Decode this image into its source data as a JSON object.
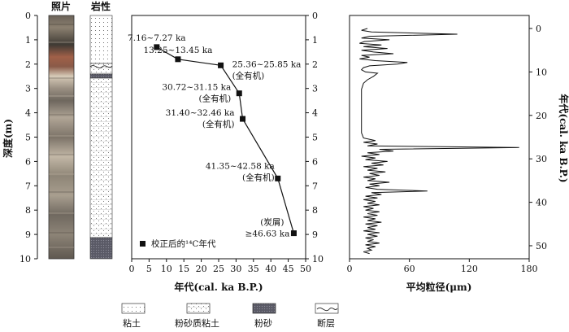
{
  "photo_column": {
    "header": "照片"
  },
  "lithology_column": {
    "header": "岩性"
  },
  "depth_axis": {
    "label": "深度(m)",
    "ticks": [
      "0",
      "1",
      "2",
      "3",
      "4",
      "5",
      "6",
      "7",
      "8",
      "9",
      "10"
    ]
  },
  "chart_data": [
    {
      "type": "scatter",
      "title": "",
      "xlabel": "年代(cal. ka B.P.)",
      "ylabel": "深度(m)",
      "xlim": [
        0,
        50
      ],
      "ylim": [
        0,
        10
      ],
      "y_inverted": true,
      "x_ticks": [
        "0",
        "5",
        "10",
        "15",
        "20",
        "25",
        "30",
        "35",
        "40",
        "45",
        "50"
      ],
      "y_ticks": [
        "0",
        "1",
        "2",
        "3",
        "4",
        "5",
        "6",
        "7",
        "8",
        "9",
        "10"
      ],
      "legend": {
        "label": "校正后的¹⁴C年代",
        "placement": "bottom-left"
      },
      "points": [
        {
          "age": 7.2,
          "depth": 1.3,
          "label": "7.16~7.27 ka",
          "note": ""
        },
        {
          "age": 13.3,
          "depth": 1.8,
          "label": "13.25~13.45 ka",
          "note": ""
        },
        {
          "age": 25.6,
          "depth": 2.05,
          "label": "25.36~25.85 ka",
          "note": "(全有机)"
        },
        {
          "age": 30.9,
          "depth": 3.2,
          "label": "30.72~31.15 ka",
          "note": "(全有机)"
        },
        {
          "age": 31.9,
          "depth": 4.25,
          "label": "31.40~32.46 ka",
          "note": "(全有机)"
        },
        {
          "age": 42.0,
          "depth": 6.7,
          "label": "41.35~42.58 ka",
          "note": "(全有机)"
        },
        {
          "age": 46.6,
          "depth": 8.95,
          "label": "≥46.63 ka",
          "note": "(炭屑)"
        }
      ]
    },
    {
      "type": "line",
      "title": "",
      "xlabel": "平均粒径(μm)",
      "ylabel": "年代(cal. ka B.P.)",
      "xlim": [
        0,
        180
      ],
      "ylim": [
        -3,
        53
      ],
      "y_inverted": true,
      "x_ticks": [
        "0",
        "60",
        "120",
        "180"
      ],
      "y_ticks": [
        "0",
        "10",
        "20",
        "30",
        "40",
        "50"
      ],
      "series": [
        {
          "name": "",
          "points": [
            [
              18,
              0
            ],
            [
              12,
              0.4
            ],
            [
              22,
              0.8
            ],
            [
              108,
              1.3
            ],
            [
              20,
              1.8
            ],
            [
              12,
              2.2
            ],
            [
              40,
              2.6
            ],
            [
              15,
              3.0
            ],
            [
              10,
              3.4
            ],
            [
              32,
              3.8
            ],
            [
              14,
              4.2
            ],
            [
              38,
              4.6
            ],
            [
              12,
              5.0
            ],
            [
              24,
              5.4
            ],
            [
              44,
              5.8
            ],
            [
              12,
              6.2
            ],
            [
              20,
              6.6
            ],
            [
              10,
              7.0
            ],
            [
              26,
              7.4
            ],
            [
              58,
              7.8
            ],
            [
              48,
              8.2
            ],
            [
              20,
              8.6
            ],
            [
              14,
              9.0
            ],
            [
              12,
              9.5
            ],
            [
              16,
              10.0
            ],
            [
              28,
              10.3
            ],
            [
              24,
              11.0
            ],
            [
              18,
              11.8
            ],
            [
              14,
              12.6
            ],
            [
              12,
              14
            ],
            [
              12,
              16
            ],
            [
              12,
              18
            ],
            [
              12,
              20
            ],
            [
              12,
              22
            ],
            [
              12,
              24
            ],
            [
              14,
              25.2
            ],
            [
              26,
              25.8
            ],
            [
              14,
              26.2
            ],
            [
              28,
              26.6
            ],
            [
              18,
              27.0
            ],
            [
              170,
              27.4
            ],
            [
              30,
              27.8
            ],
            [
              44,
              28.2
            ],
            [
              18,
              28.6
            ],
            [
              30,
              29.0
            ],
            [
              12,
              29.4
            ],
            [
              26,
              29.8
            ],
            [
              16,
              30.2
            ],
            [
              38,
              30.6
            ],
            [
              22,
              31.0
            ],
            [
              34,
              31.4
            ],
            [
              14,
              31.8
            ],
            [
              28,
              32.2
            ],
            [
              18,
              32.6
            ],
            [
              36,
              33.0
            ],
            [
              20,
              33.4
            ],
            [
              30,
              33.8
            ],
            [
              14,
              34.2
            ],
            [
              26,
              34.6
            ],
            [
              18,
              35.0
            ],
            [
              40,
              35.4
            ],
            [
              20,
              35.8
            ],
            [
              30,
              36.2
            ],
            [
              16,
              36.6
            ],
            [
              28,
              37.0
            ],
            [
              78,
              37.4
            ],
            [
              22,
              37.8
            ],
            [
              32,
              38.2
            ],
            [
              16,
              38.6
            ],
            [
              28,
              39.0
            ],
            [
              14,
              39.4
            ],
            [
              26,
              39.8
            ],
            [
              18,
              40.2
            ],
            [
              30,
              40.6
            ],
            [
              14,
              41.0
            ],
            [
              24,
              41.4
            ],
            [
              16,
              41.8
            ],
            [
              30,
              42.2
            ],
            [
              18,
              42.6
            ],
            [
              28,
              43.0
            ],
            [
              14,
              43.4
            ],
            [
              26,
              43.8
            ],
            [
              18,
              44.2
            ],
            [
              32,
              44.6
            ],
            [
              16,
              45.0
            ],
            [
              28,
              45.4
            ],
            [
              18,
              45.8
            ],
            [
              26,
              46.2
            ],
            [
              14,
              46.6
            ],
            [
              30,
              47.0
            ],
            [
              18,
              47.4
            ],
            [
              28,
              47.8
            ],
            [
              16,
              48.2
            ],
            [
              24,
              48.6
            ],
            [
              18,
              49.0
            ],
            [
              30,
              49.4
            ],
            [
              16,
              49.8
            ],
            [
              26,
              50.2
            ],
            [
              18,
              50.6
            ],
            [
              22,
              51.0
            ],
            [
              14,
              51.4
            ],
            [
              20,
              51.8
            ]
          ]
        }
      ]
    }
  ],
  "lithology_legend": [
    {
      "label": "粘土",
      "pattern": "clay"
    },
    {
      "label": "粉砂质粘土",
      "pattern": "silty-clay"
    },
    {
      "label": "粉砂",
      "pattern": "silt"
    },
    {
      "label": "断层",
      "pattern": "fault"
    }
  ],
  "colors": {
    "axis": "#111111",
    "silt_fill": "#5a5a66",
    "marker": "#111111"
  }
}
